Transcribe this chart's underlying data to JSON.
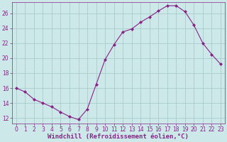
{
  "x": [
    0,
    1,
    2,
    3,
    4,
    5,
    6,
    7,
    8,
    9,
    10,
    11,
    12,
    13,
    14,
    15,
    16,
    17,
    18,
    19,
    20,
    21,
    22,
    23
  ],
  "y": [
    16.0,
    15.5,
    14.5,
    14.0,
    13.5,
    12.8,
    12.2,
    11.8,
    13.2,
    16.5,
    19.8,
    21.8,
    23.5,
    23.9,
    24.8,
    25.5,
    26.3,
    27.0,
    27.0,
    26.2,
    24.4,
    22.0,
    20.5,
    19.2
  ],
  "line_color": "#882288",
  "marker": "D",
  "marker_size": 2,
  "bg_color": "#cce8e8",
  "grid_color": "#aacccc",
  "xlabel": "Windchill (Refroidissement éolien,°C)",
  "xlim": [
    -0.5,
    23.5
  ],
  "ylim": [
    11.3,
    27.5
  ],
  "yticks": [
    12,
    14,
    16,
    18,
    20,
    22,
    24,
    26
  ],
  "xticks": [
    0,
    1,
    2,
    3,
    4,
    5,
    6,
    7,
    8,
    9,
    10,
    11,
    12,
    13,
    14,
    15,
    16,
    17,
    18,
    19,
    20,
    21,
    22,
    23
  ],
  "tick_fontsize": 5.5,
  "xlabel_fontsize": 6.5
}
